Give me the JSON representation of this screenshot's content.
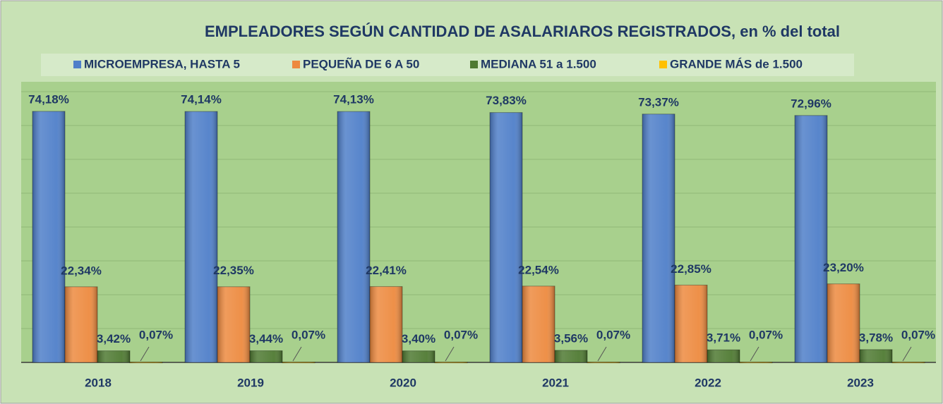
{
  "chart_data": {
    "type": "bar",
    "title": "EMPLEADORES SEGÚN CANTIDAD DE ASALARIAROS REGISTRADOS, en % del total",
    "categories": [
      "2018",
      "2019",
      "2020",
      "2021",
      "2022",
      "2023"
    ],
    "series": [
      {
        "name": "MICROEMPRESA, HASTA 5",
        "color": "#4f7fc9",
        "values": [
          74.18,
          74.14,
          74.13,
          73.83,
          73.37,
          72.96
        ],
        "value_labels": [
          "74,18%",
          "74,14%",
          "74,13%",
          "73,83%",
          "73,37%",
          "72,96%"
        ]
      },
      {
        "name": "PEQUEÑA DE 6 A 50",
        "color": "#ed8a3f",
        "values": [
          22.34,
          22.35,
          22.41,
          22.54,
          22.85,
          23.2
        ],
        "value_labels": [
          "22,34%",
          "22,35%",
          "22,41%",
          "22,54%",
          "22,85%",
          "23,20%"
        ]
      },
      {
        "name": "MEDIANA 51 a 1.500",
        "color": "#4f7a32",
        "values": [
          3.42,
          3.44,
          3.4,
          3.56,
          3.71,
          3.78
        ],
        "value_labels": [
          "3,42%",
          "3,44%",
          "3,40%",
          "3,56%",
          "3,71%",
          "3,78%"
        ]
      },
      {
        "name": "GRANDE MÁS de 1.500",
        "color": "#ffc000",
        "values": [
          0.07,
          0.07,
          0.07,
          0.07,
          0.07,
          0.07
        ],
        "value_labels": [
          "0,07%",
          "0,07%",
          "0,07%",
          "0,07%",
          "0,07%",
          "0,07%"
        ]
      }
    ],
    "ylim": [
      0,
      80
    ],
    "yticks": [
      0,
      10,
      20,
      30,
      40,
      50,
      60,
      70,
      80
    ],
    "grid": true
  }
}
